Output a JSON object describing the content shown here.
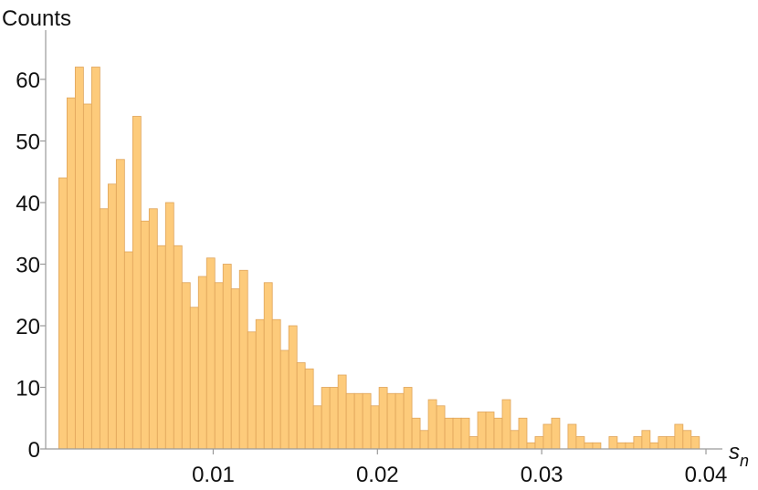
{
  "chart_data": {
    "type": "histogram",
    "y_label": "Counts",
    "x_label": {
      "base": "s",
      "sub": "n"
    },
    "color": "#fdcb7b",
    "edge_color": "#dfa45a",
    "bins": [
      0.0006,
      0.0011,
      0.0016,
      0.0021,
      0.0026,
      0.0031,
      0.0036,
      0.0041,
      0.0046,
      0.0051,
      0.0056,
      0.0061,
      0.0066,
      0.0071,
      0.0076,
      0.0081,
      0.0086,
      0.0091,
      0.0096,
      0.0101,
      0.0106,
      0.0111,
      0.0116,
      0.0121,
      0.0126,
      0.0131,
      0.0136,
      0.0141,
      0.0146,
      0.0151,
      0.0156,
      0.0161,
      0.0166,
      0.0171,
      0.0176,
      0.0181,
      0.0186,
      0.0191,
      0.0196,
      0.0201,
      0.0206,
      0.0211,
      0.0216,
      0.0221,
      0.0226,
      0.0231,
      0.0236,
      0.0241,
      0.0246,
      0.0251,
      0.0256,
      0.0261,
      0.0266,
      0.0271,
      0.0276,
      0.0281,
      0.0286,
      0.0291,
      0.0296,
      0.0301,
      0.0306,
      0.0311,
      0.0316,
      0.0321,
      0.0326,
      0.0331,
      0.0336,
      0.0341,
      0.0346,
      0.0351,
      0.0356,
      0.0361,
      0.0366,
      0.0371,
      0.0376,
      0.0381,
      0.0386,
      0.0391,
      0.0396
    ],
    "values": [
      44,
      57,
      62,
      56,
      62,
      39,
      43,
      47,
      32,
      54,
      37,
      39,
      33,
      40,
      33,
      27,
      23,
      28,
      31,
      27,
      30,
      26,
      29,
      19,
      21,
      27,
      21,
      16,
      20,
      14,
      13,
      7,
      10,
      10,
      12,
      9,
      9,
      9,
      7,
      10,
      9,
      9,
      10,
      5,
      3,
      8,
      7,
      5,
      5,
      5,
      2,
      6,
      6,
      5,
      8,
      3,
      5,
      1,
      2,
      4,
      5,
      0,
      4,
      2,
      1,
      1,
      0,
      2,
      1,
      1,
      2,
      3,
      1,
      2,
      2,
      4,
      3,
      2
    ],
    "xlim": [
      -0.0002,
      0.041
    ],
    "ylim": [
      0,
      68
    ],
    "xticks": [
      0.01,
      0.02,
      0.03,
      0.04
    ],
    "yticks": [
      0,
      10,
      20,
      30,
      40,
      50,
      60
    ]
  }
}
